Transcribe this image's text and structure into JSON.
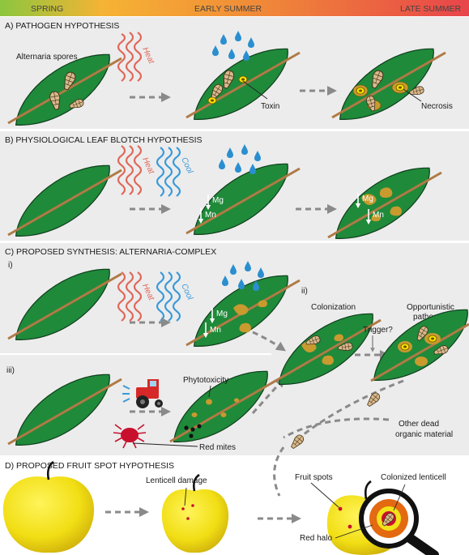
{
  "seasons": {
    "spring": "SPRING",
    "early": "EARLY SUMMER",
    "late": "LATE SUMMER"
  },
  "colors": {
    "leaf": "#1f8a3a",
    "stem": "#b07a45",
    "panel": "#ececec",
    "arrow": "#8a8a8a",
    "spot": "#c99a2e",
    "heat": "#e0685a",
    "cool": "#3a9ad9",
    "drop": "#2a8fd0",
    "apple": "#f2e21a",
    "mite": "#c8102e",
    "tractor": "#d62828",
    "halo": "#e36a10"
  },
  "sections": {
    "a": {
      "title": "A) PATHOGEN HYPOTHESIS",
      "spores_label": "Alternaria spores",
      "heat": "Heat",
      "toxin": "Toxin",
      "necrosis": "Necrosis"
    },
    "b": {
      "title": "B) PHYSIOLOGICAL LEAF BLOTCH HYPOTHESIS",
      "heat": "Heat",
      "cool": "Cool",
      "mg": "Mg",
      "mn": "Mn",
      "mg2": "Mg",
      "mn2": "Mn"
    },
    "c": {
      "title": "C) PROPOSED SYNTHESIS: ALTERNARIA-COMPLEX",
      "i": "i)",
      "ii": "ii)",
      "iii": "iii)",
      "heat": "Heat",
      "cool": "Cool",
      "mg": "Mg",
      "mn": "Mn",
      "colonization": "Colonization",
      "trigger": "Trigger?",
      "opportunistic_1": "Opportunistic",
      "opportunistic_2": "pathogen",
      "phytotoxicity": "Phytotoxicity",
      "red_mites": "Red mites",
      "other_dead_1": "Other dead",
      "other_dead_2": "organic material"
    },
    "d": {
      "title": "D) PROPOSED FRUIT SPOT HYPOTHESIS",
      "lenticell_damage": "Lenticell damage",
      "fruit_spots": "Fruit spots",
      "colonized_lenticell": "Colonized lenticell",
      "red_halo": "Red halo"
    }
  }
}
